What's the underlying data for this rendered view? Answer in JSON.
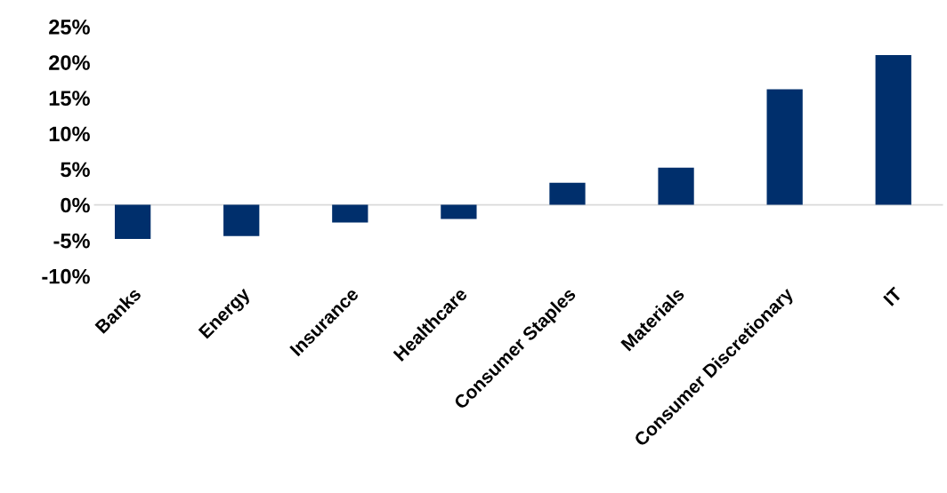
{
  "chart_data": {
    "type": "bar",
    "categories": [
      "Banks",
      "Energy",
      "Insurance",
      "Healthcare",
      "Consumer Staples",
      "Materials",
      "Consumer Discretionary",
      "IT"
    ],
    "values": [
      -4.8,
      -4.4,
      -2.5,
      -2.0,
      3.1,
      5.2,
      16.2,
      21.0
    ],
    "color": "#002f6c",
    "ylim": [
      -10,
      25
    ],
    "yticks": [
      {
        "value": -10,
        "label": "-10%"
      },
      {
        "value": -5,
        "label": "-5%"
      },
      {
        "value": 0,
        "label": "0%"
      },
      {
        "value": 5,
        "label": "5%"
      },
      {
        "value": 10,
        "label": "10%"
      },
      {
        "value": 15,
        "label": "15%"
      },
      {
        "value": 20,
        "label": "20%"
      },
      {
        "value": 25,
        "label": "25%"
      }
    ],
    "legend": false
  }
}
